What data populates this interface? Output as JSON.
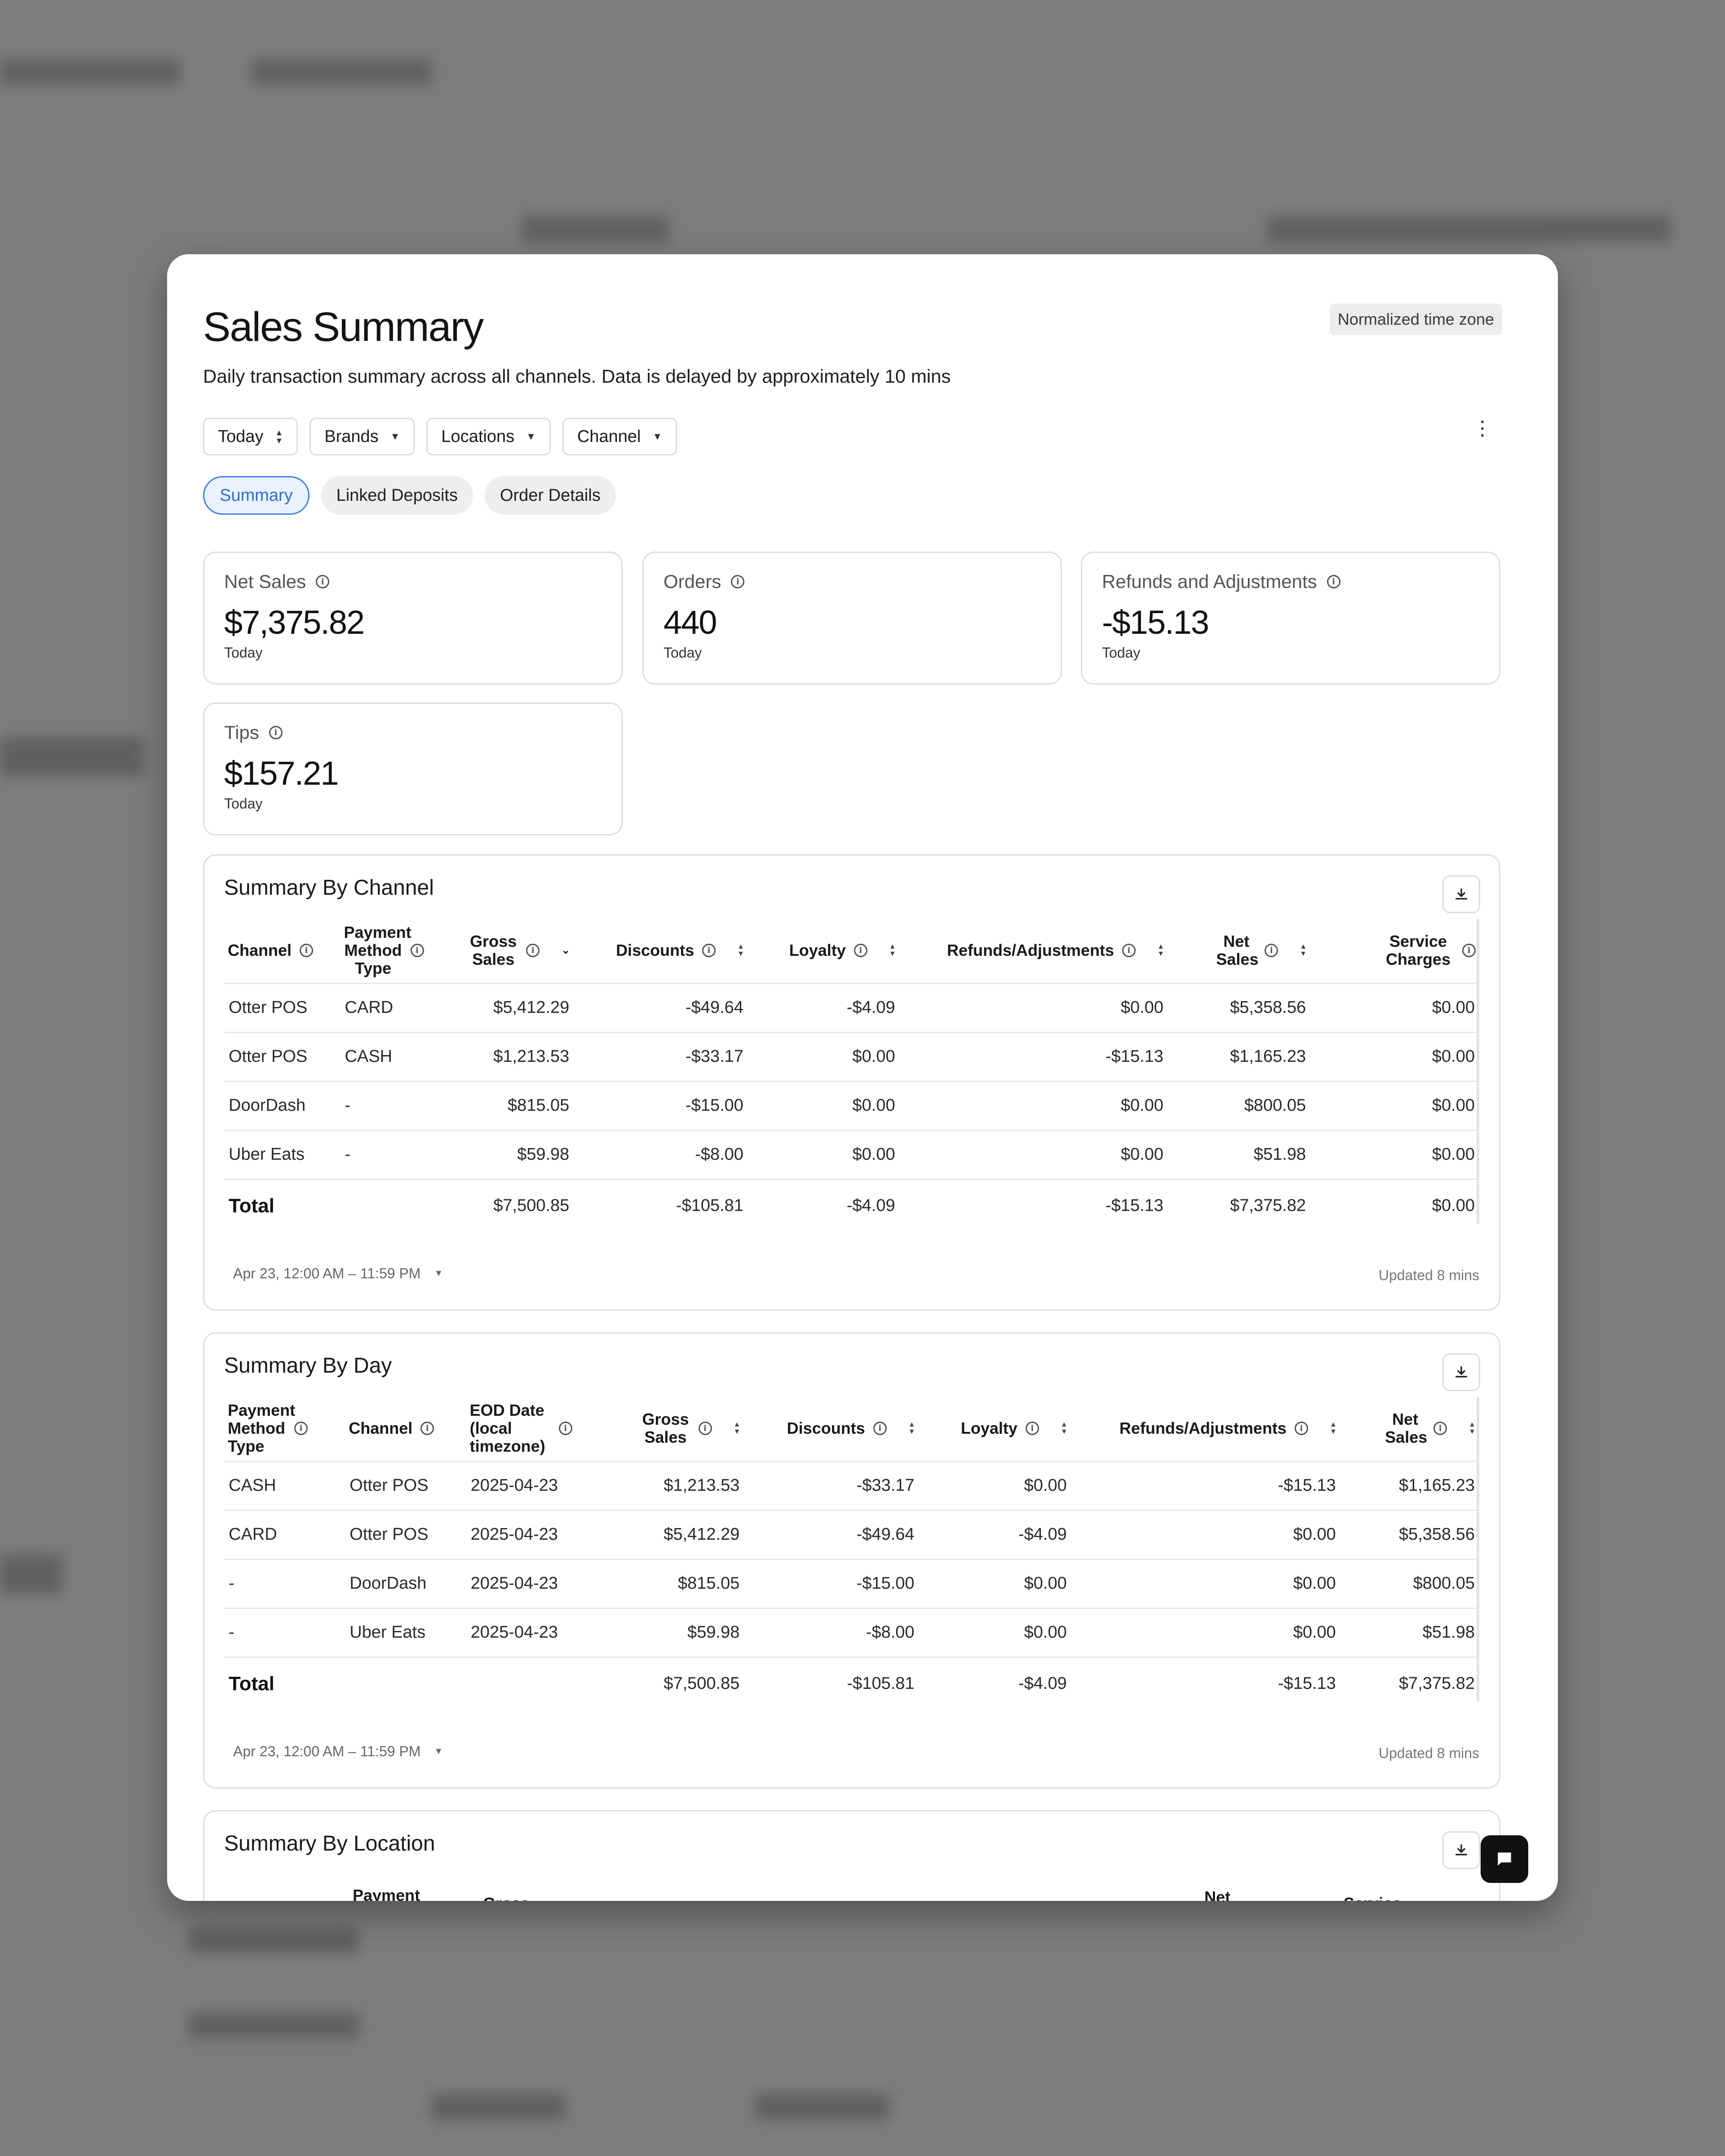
{
  "header": {
    "title": "Sales Summary",
    "subtitle": "Daily transaction summary across all channels. Data is delayed by approximately 10 mins",
    "timezone_badge": "Normalized time zone"
  },
  "filters": {
    "date": "Today",
    "brands": "Brands",
    "locations": "Locations",
    "channel": "Channel"
  },
  "tabs": [
    "Summary",
    "Linked Deposits",
    "Order Details"
  ],
  "metrics": [
    {
      "label": "Net Sales",
      "value": "$7,375.82",
      "period": "Today"
    },
    {
      "label": "Orders",
      "value": "440",
      "period": "Today"
    },
    {
      "label": "Refunds and Adjustments",
      "value": "-$15.13",
      "period": "Today"
    },
    {
      "label": "Tips",
      "value": "$157.21",
      "period": "Today"
    }
  ],
  "by_channel": {
    "title": "Summary By Channel",
    "headers": [
      "Channel",
      "Payment Method Type",
      "Gross Sales",
      "Discounts",
      "Loyalty",
      "Refunds/Adjustments",
      "Net Sales",
      "Service Charges"
    ],
    "rows": [
      [
        "Otter POS",
        "CARD",
        "$5,412.29",
        "-$49.64",
        "-$4.09",
        "$0.00",
        "$5,358.56",
        "$0.00"
      ],
      [
        "Otter POS",
        "CASH",
        "$1,213.53",
        "-$33.17",
        "$0.00",
        "-$15.13",
        "$1,165.23",
        "$0.00"
      ],
      [
        "DoorDash",
        "-",
        "$815.05",
        "-$15.00",
        "$0.00",
        "$0.00",
        "$800.05",
        "$0.00"
      ],
      [
        "Uber Eats",
        "-",
        "$59.98",
        "-$8.00",
        "$0.00",
        "$0.00",
        "$51.98",
        "$0.00"
      ]
    ],
    "total": [
      "Total",
      "",
      "$7,500.85",
      "-$105.81",
      "-$4.09",
      "-$15.13",
      "$7,375.82",
      "$0.00"
    ],
    "range": "Apr 23, 12:00 AM – 11:59 PM",
    "updated": "Updated 8 mins"
  },
  "by_day": {
    "title": "Summary By Day",
    "headers": [
      "Payment Method Type",
      "Channel",
      "EOD Date (local timezone)",
      "Gross Sales",
      "Discounts",
      "Loyalty",
      "Refunds/Adjustments",
      "Net Sales"
    ],
    "rows": [
      [
        "CASH",
        "Otter POS",
        "2025-04-23",
        "$1,213.53",
        "-$33.17",
        "$0.00",
        "-$15.13",
        "$1,165.23"
      ],
      [
        "CARD",
        "Otter POS",
        "2025-04-23",
        "$5,412.29",
        "-$49.64",
        "-$4.09",
        "$0.00",
        "$5,358.56"
      ],
      [
        "-",
        "DoorDash",
        "2025-04-23",
        "$815.05",
        "-$15.00",
        "$0.00",
        "$0.00",
        "$800.05"
      ],
      [
        "-",
        "Uber Eats",
        "2025-04-23",
        "$59.98",
        "-$8.00",
        "$0.00",
        "$0.00",
        "$51.98"
      ]
    ],
    "total": [
      "Total",
      "",
      "",
      "$7,500.85",
      "-$105.81",
      "-$4.09",
      "-$15.13",
      "$7,375.82"
    ],
    "range": "Apr 23, 12:00 AM – 11:59 PM",
    "updated": "Updated 8 mins"
  },
  "by_location": {
    "title": "Summary By Location",
    "headers": [
      "Payment",
      "Gross",
      "Net",
      "Service"
    ]
  }
}
